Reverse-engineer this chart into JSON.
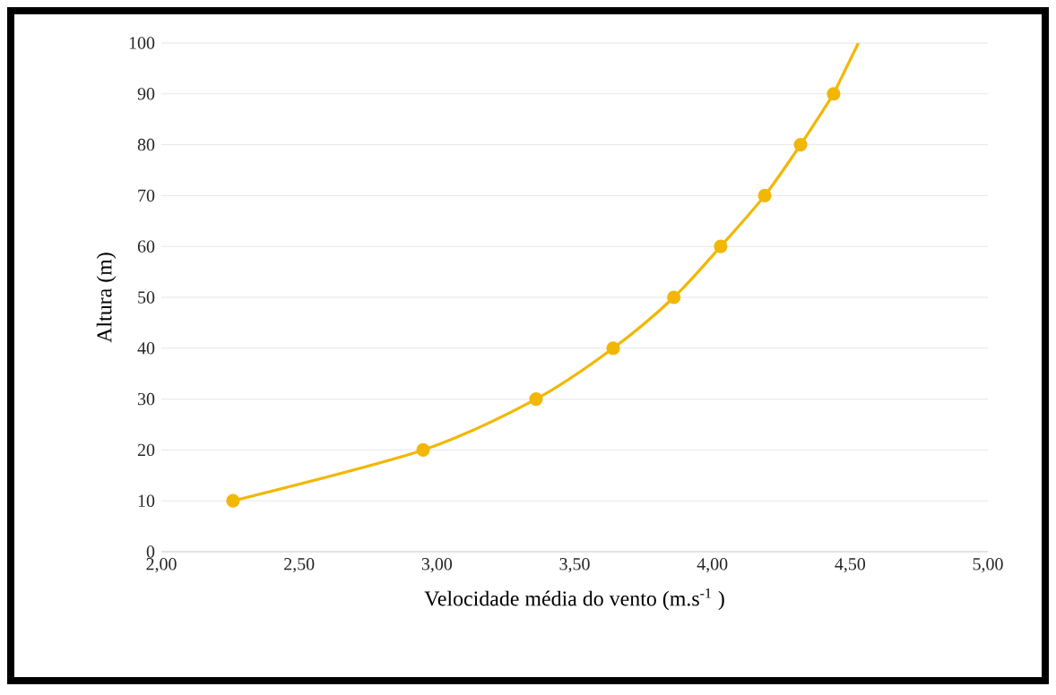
{
  "chart_data": {
    "type": "line",
    "xlabel": "Velocidade média do vento (m.s$^{-1}$ )",
    "ylabel": "Altura (m)",
    "series": [
      {
        "color": "#f2b705",
        "marker": "circle",
        "x": [
          2.26,
          2.95,
          3.36,
          3.64,
          3.86,
          4.03,
          4.19,
          4.32,
          4.44
        ],
        "values": [
          10,
          20,
          30,
          40,
          50,
          60,
          70,
          80,
          90
        ]
      },
      {
        "color": "#f2b705",
        "marker": "none",
        "x": [
          4.44,
          4.53
        ],
        "values": [
          90,
          100
        ]
      }
    ],
    "xlim": [
      2,
      5
    ],
    "ylim": [
      0,
      100
    ],
    "xticks": [
      {
        "value": 2,
        "label": "2,00"
      },
      {
        "value": 2.5,
        "label": "2,50"
      },
      {
        "value": 3,
        "label": "3,00"
      },
      {
        "value": 3.5,
        "label": "3,50"
      },
      {
        "value": 4,
        "label": "4,00"
      },
      {
        "value": 4.5,
        "label": "4,50"
      },
      {
        "value": 5,
        "label": "5,00"
      }
    ],
    "yticks": [
      0,
      10,
      20,
      30,
      40,
      50,
      60,
      70,
      80,
      90,
      100
    ],
    "grid": "y"
  }
}
